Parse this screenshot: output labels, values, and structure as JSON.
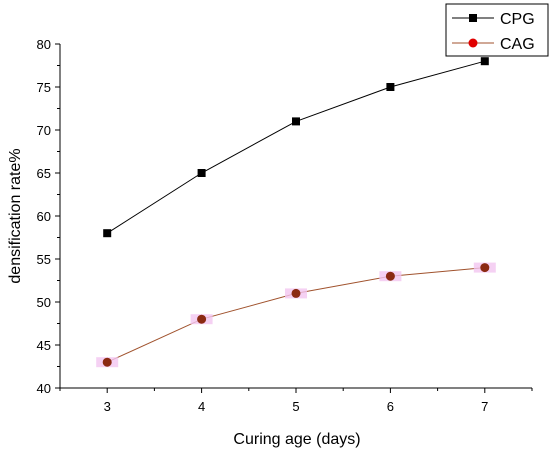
{
  "chart_data": {
    "type": "line",
    "x": [
      3,
      4,
      5,
      6,
      7
    ],
    "series": [
      {
        "name": "CPG",
        "values": [
          58,
          65,
          71,
          75,
          78
        ],
        "color": "#000000",
        "marker": "square"
      },
      {
        "name": "CAG",
        "values": [
          43,
          48,
          51,
          53,
          54
        ],
        "color": "#a0522d",
        "marker_color": "#e00000",
        "marker": "circle"
      }
    ],
    "xlabel": "Curing age (days)",
    "ylabel": "densification rate%",
    "xlim": [
      2.5,
      7.5
    ],
    "ylim": [
      40,
      80
    ],
    "xticks": [
      "3",
      "4",
      "5",
      "6",
      "7"
    ],
    "yticks": [
      "40",
      "45",
      "50",
      "55",
      "60",
      "65",
      "70",
      "75",
      "80"
    ],
    "grid": false,
    "legend_position": "top-right"
  }
}
